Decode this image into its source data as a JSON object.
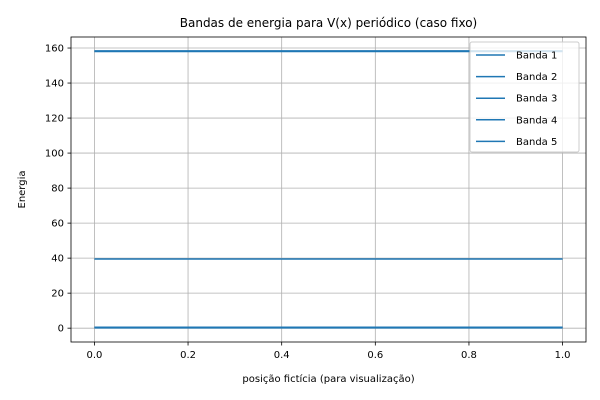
{
  "chart_data": {
    "type": "line",
    "title": "Bandas de energia para V(x) periódico (caso fixo)",
    "xlabel": "posição fictícia (para visualização)",
    "ylabel": "Energia",
    "xlim": [
      -0.05,
      1.05
    ],
    "ylim": [
      -7.9,
      166.3
    ],
    "xticks": [
      0.0,
      0.2,
      0.4,
      0.6,
      0.8,
      1.0
    ],
    "xtick_labels": [
      "0.0",
      "0.2",
      "0.4",
      "0.6",
      "0.8",
      "1.0"
    ],
    "yticks": [
      0,
      20,
      40,
      60,
      80,
      100,
      120,
      140,
      160
    ],
    "ytick_labels": [
      "0",
      "20",
      "40",
      "60",
      "80",
      "100",
      "120",
      "140",
      "160"
    ],
    "grid": true,
    "legend_position": "top-right",
    "series": [
      {
        "name": "Banda 1",
        "x": [
          0.0,
          1.0
        ],
        "y": [
          0.2,
          0.2
        ],
        "color": "#1f77b4"
      },
      {
        "name": "Banda 2",
        "x": [
          0.0,
          1.0
        ],
        "y": [
          0.5,
          0.5
        ],
        "color": "#1f77b4"
      },
      {
        "name": "Banda 3",
        "x": [
          0.0,
          1.0
        ],
        "y": [
          39.5,
          39.5
        ],
        "color": "#1f77b4"
      },
      {
        "name": "Banda 4",
        "x": [
          0.0,
          1.0
        ],
        "y": [
          158.0,
          158.0
        ],
        "color": "#1f77b4"
      },
      {
        "name": "Banda 5",
        "x": [
          0.0,
          1.0
        ],
        "y": [
          158.4,
          158.4
        ],
        "color": "#1f77b4"
      }
    ]
  }
}
